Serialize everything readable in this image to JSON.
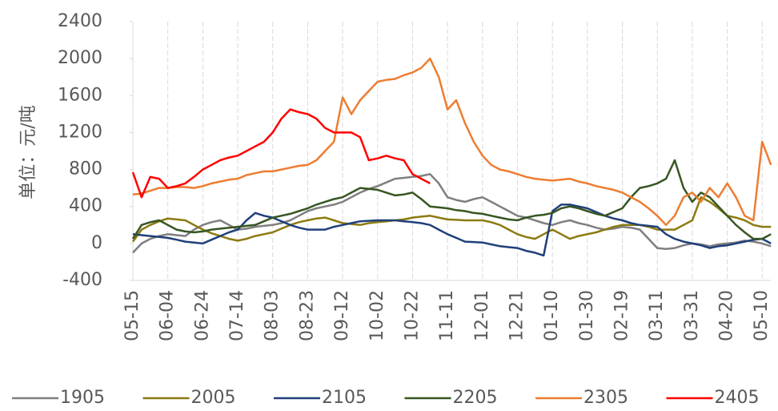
{
  "chart_data": {
    "type": "line",
    "y_label": "单位：元/吨",
    "categories": [
      "05-15",
      null,
      null,
      null,
      "06-04",
      null,
      null,
      null,
      "06-24",
      null,
      null,
      null,
      "07-14",
      null,
      null,
      null,
      "08-03",
      null,
      null,
      null,
      "08-23",
      null,
      null,
      null,
      "09-12",
      null,
      null,
      null,
      "10-02",
      null,
      null,
      null,
      "10-22",
      null,
      null,
      null,
      "11-11",
      null,
      null,
      null,
      "12-01",
      null,
      null,
      null,
      "12-21",
      null,
      null,
      null,
      "01-10",
      null,
      null,
      null,
      "01-30",
      null,
      null,
      null,
      "02-19",
      null,
      null,
      null,
      "03-11",
      null,
      null,
      null,
      "03-31",
      null,
      null,
      null,
      "04-20",
      null,
      null,
      null,
      "05-10",
      null
    ],
    "ylim": [
      -400,
      2400
    ],
    "yticks": [
      -400,
      0,
      400,
      800,
      1200,
      1600,
      2000,
      2400
    ],
    "grid": true,
    "legend": "bottom",
    "series": [
      {
        "name": "1905",
        "color": "#7f7f7f",
        "values": [
          -100,
          0,
          50,
          80,
          100,
          90,
          80,
          150,
          200,
          230,
          250,
          200,
          150,
          160,
          180,
          190,
          200,
          220,
          250,
          300,
          350,
          380,
          400,
          420,
          450,
          500,
          550,
          590,
          620,
          660,
          700,
          710,
          720,
          730,
          750,
          650,
          500,
          470,
          450,
          480,
          500,
          450,
          400,
          350,
          300,
          280,
          250,
          220,
          200,
          230,
          250,
          220,
          200,
          170,
          150,
          160,
          180,
          170,
          150,
          50,
          -50,
          -60,
          -50,
          -20,
          0,
          -10,
          -30,
          -10,
          0,
          10,
          30,
          20,
          0,
          -30
        ]
      },
      {
        "name": "2005",
        "color": "#8c7a10",
        "values": [
          20,
          150,
          200,
          240,
          270,
          260,
          250,
          200,
          150,
          110,
          80,
          50,
          30,
          50,
          80,
          100,
          120,
          160,
          200,
          230,
          250,
          270,
          280,
          250,
          220,
          210,
          200,
          220,
          230,
          240,
          250,
          260,
          280,
          290,
          300,
          280,
          260,
          255,
          250,
          250,
          250,
          230,
          200,
          150,
          100,
          70,
          50,
          100,
          150,
          100,
          50,
          80,
          100,
          120,
          150,
          180,
          200,
          200,
          200,
          180,
          150,
          150,
          150,
          200,
          250,
          500,
          450,
          380,
          300,
          280,
          250,
          200,
          180,
          180
        ]
      },
      {
        "name": "2105",
        "color": "#203f7a",
        "values": [
          100,
          90,
          80,
          70,
          60,
          40,
          20,
          10,
          0,
          40,
          80,
          120,
          150,
          250,
          330,
          300,
          280,
          240,
          200,
          170,
          150,
          150,
          150,
          180,
          200,
          220,
          240,
          245,
          250,
          250,
          250,
          240,
          230,
          220,
          200,
          150,
          100,
          60,
          20,
          15,
          10,
          -10,
          -30,
          -40,
          -50,
          -80,
          -100,
          -130,
          350,
          420,
          420,
          400,
          380,
          340,
          300,
          270,
          250,
          220,
          200,
          190,
          180,
          100,
          50,
          20,
          0,
          -20,
          -50,
          -30,
          -20,
          0,
          20,
          40,
          50,
          0
        ]
      },
      {
        "name": "2205",
        "color": "#375623",
        "values": [
          50,
          200,
          230,
          250,
          200,
          150,
          130,
          120,
          130,
          150,
          160,
          170,
          180,
          190,
          200,
          240,
          280,
          300,
          320,
          350,
          380,
          420,
          450,
          480,
          500,
          550,
          600,
          590,
          580,
          550,
          520,
          530,
          550,
          480,
          400,
          390,
          380,
          360,
          350,
          330,
          320,
          300,
          280,
          260,
          250,
          280,
          300,
          310,
          330,
          380,
          400,
          380,
          350,
          320,
          300,
          340,
          380,
          500,
          600,
          620,
          650,
          700,
          900,
          600,
          450,
          550,
          500,
          400,
          300,
          200,
          120,
          50,
          50,
          100
        ]
      },
      {
        "name": "2305",
        "color": "#ed7d31",
        "values": [
          530,
          540,
          570,
          600,
          600,
          610,
          610,
          600,
          620,
          650,
          670,
          690,
          700,
          740,
          760,
          780,
          780,
          800,
          820,
          840,
          850,
          900,
          1000,
          1100,
          1580,
          1400,
          1550,
          1650,
          1750,
          1770,
          1780,
          1820,
          1850,
          1900,
          2000,
          1800,
          1450,
          1550,
          1300,
          1100,
          950,
          850,
          800,
          780,
          750,
          720,
          700,
          690,
          680,
          690,
          700,
          670,
          650,
          620,
          600,
          580,
          550,
          500,
          450,
          380,
          300,
          200,
          300,
          500,
          550,
          450,
          600,
          500,
          650,
          500,
          300,
          250,
          1100,
          850
        ]
      },
      {
        "name": "2405",
        "color": "#ff0000",
        "values": [
          770,
          500,
          720,
          700,
          600,
          620,
          650,
          720,
          800,
          850,
          900,
          930,
          950,
          1000,
          1050,
          1100,
          1200,
          1350,
          1450,
          1420,
          1400,
          1350,
          1250,
          1200,
          1200,
          1200,
          1150,
          900,
          920,
          950,
          920,
          900,
          750,
          700,
          650,
          null,
          null,
          null,
          null,
          null,
          null,
          null,
          null,
          null,
          null,
          null,
          null,
          null,
          null,
          null,
          null,
          null,
          null,
          null,
          null,
          null,
          null,
          null,
          null,
          null,
          null,
          null,
          null,
          null,
          null,
          null,
          null,
          null,
          null,
          null,
          null,
          null,
          null,
          null
        ]
      }
    ]
  }
}
